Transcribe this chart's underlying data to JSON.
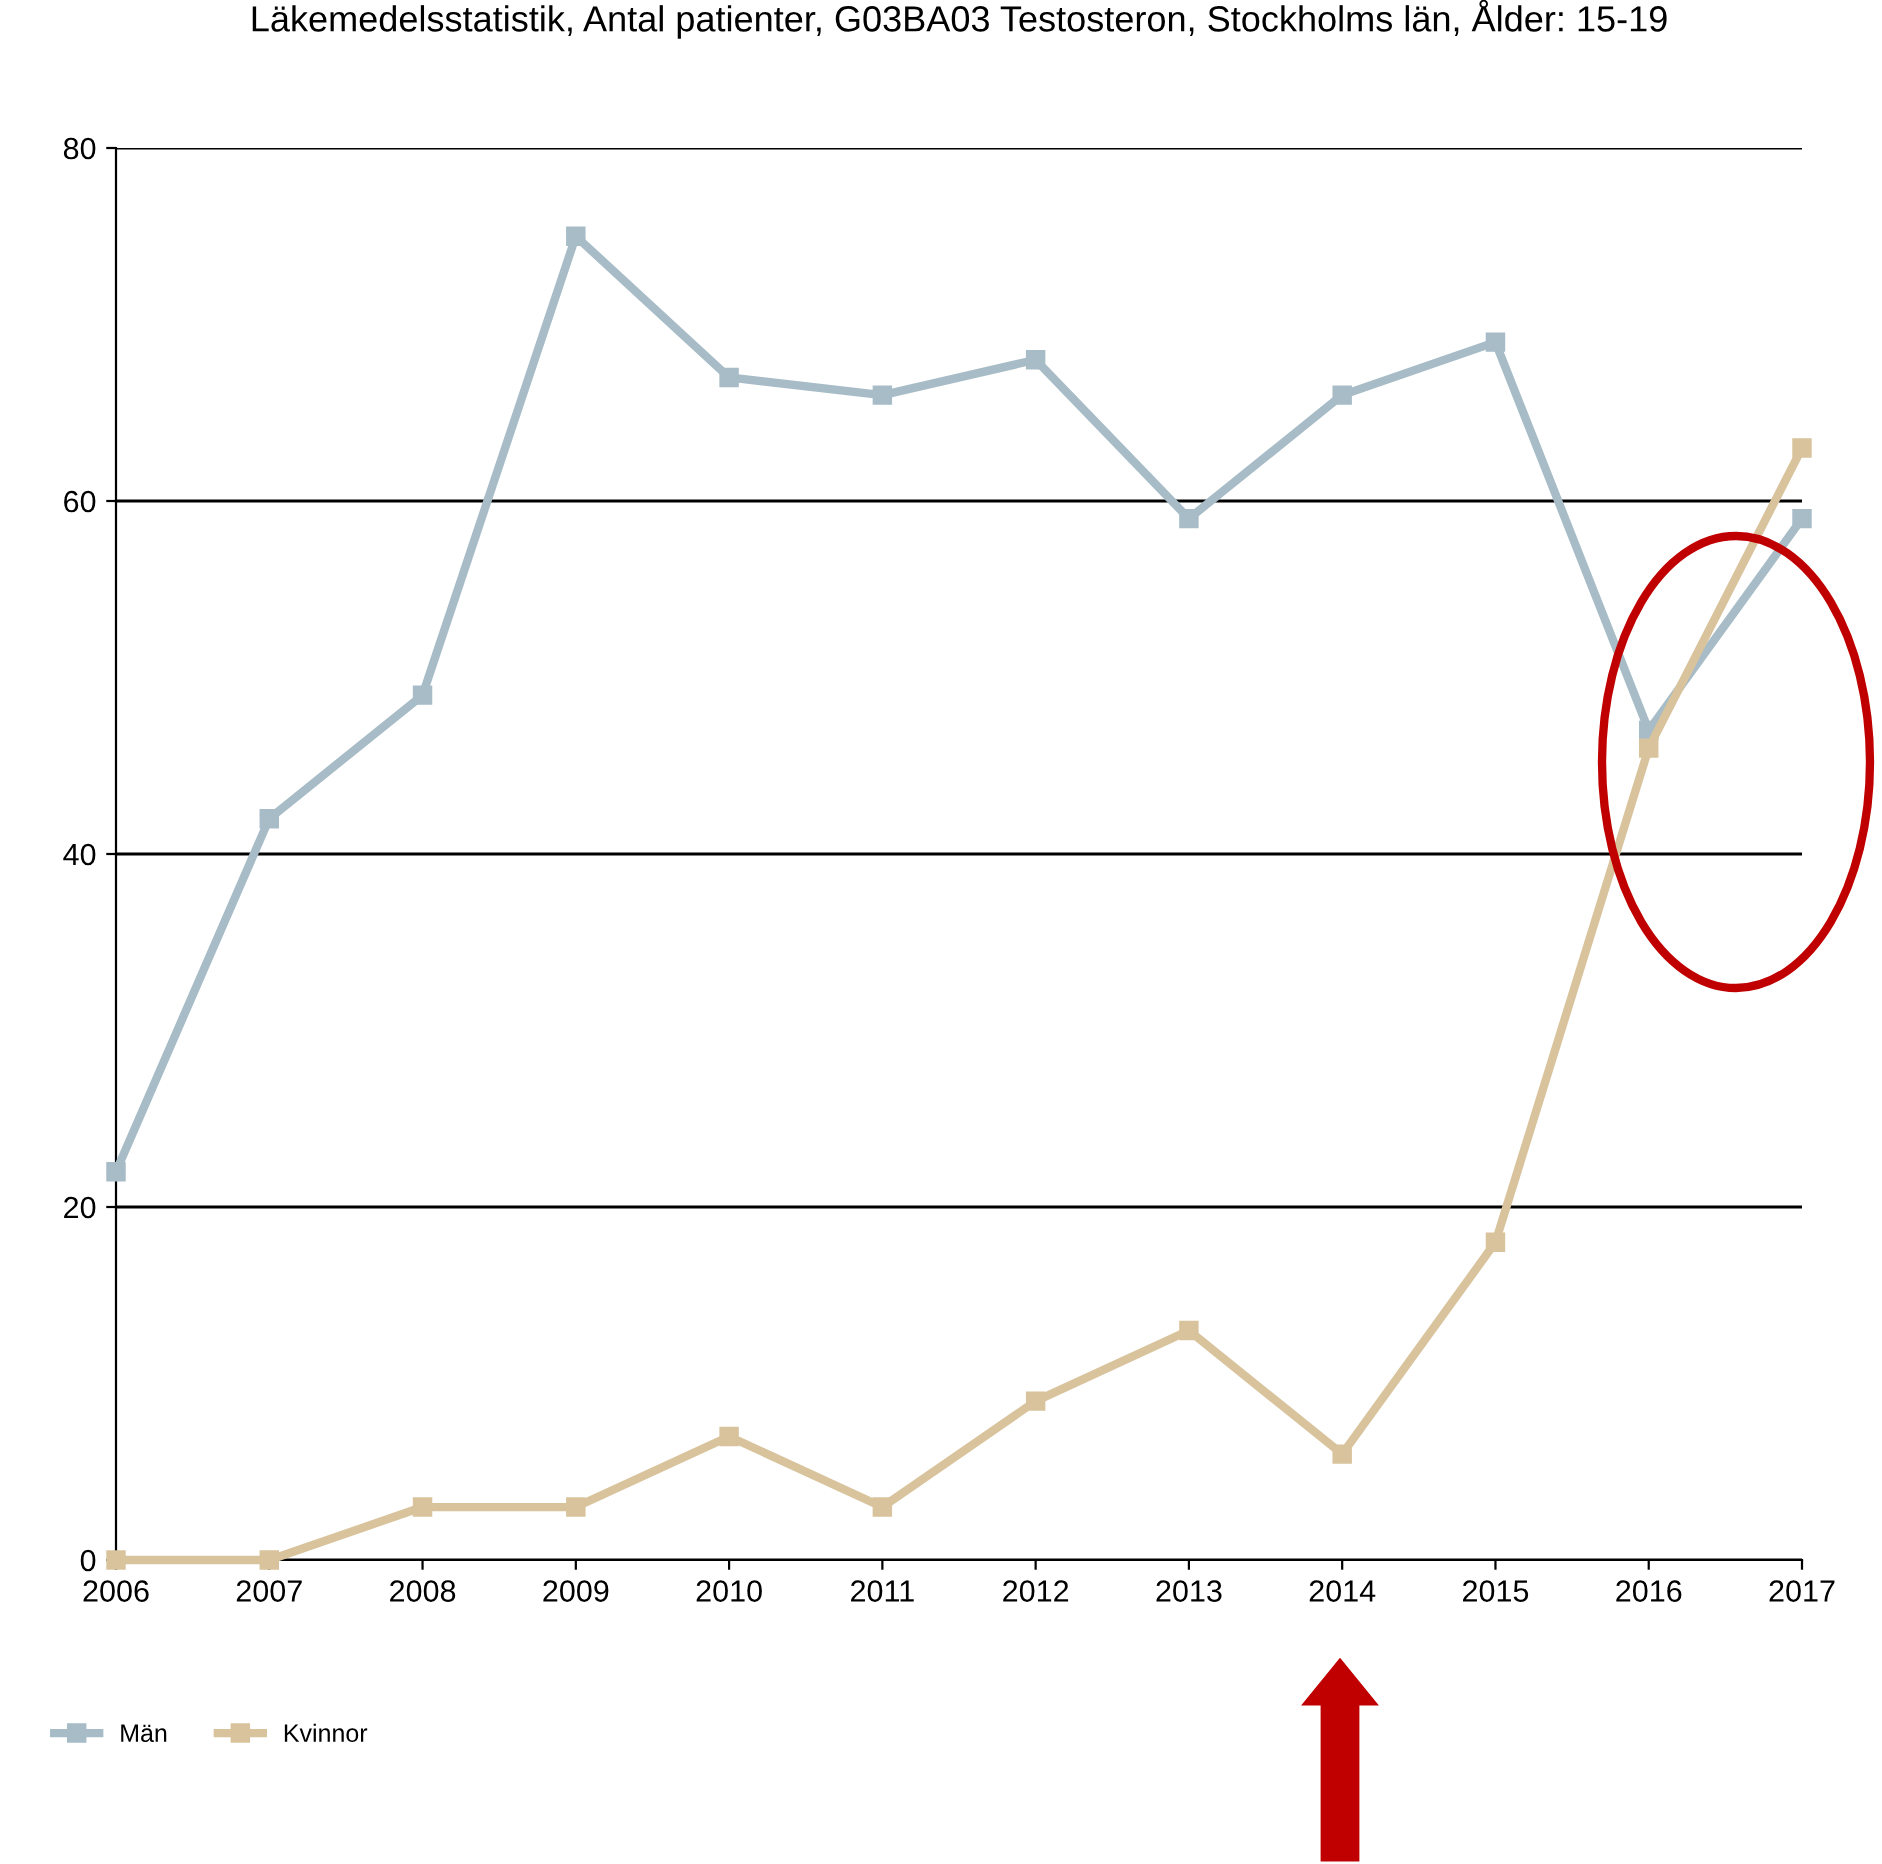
{
  "chart_data": {
    "type": "line",
    "title": "Läkemedelsstatistik, Antal patienter, G03BA03 Testosteron, Stockholms län, Ålder: 15-19",
    "x": [
      2006,
      2007,
      2008,
      2009,
      2010,
      2011,
      2012,
      2013,
      2014,
      2015,
      2016,
      2017
    ],
    "series": [
      {
        "name": "Män",
        "color": "#a7bcc7",
        "values": [
          22,
          42,
          49,
          75,
          67,
          66,
          68,
          59,
          66,
          69,
          47,
          59
        ]
      },
      {
        "name": "Kvinnor",
        "color": "#d8c39c",
        "values": [
          0,
          0,
          3,
          3,
          7,
          3,
          9,
          13,
          6,
          18,
          46,
          63
        ]
      }
    ],
    "xlim": [
      2006,
      2017
    ],
    "xticks": [
      2006,
      2007,
      2008,
      2009,
      2010,
      2011,
      2012,
      2013,
      2014,
      2015,
      2016,
      2017
    ],
    "ylim": [
      0,
      80
    ],
    "yticks": [
      0,
      20,
      40,
      60,
      80
    ],
    "grid": "y",
    "legend": "bottom left",
    "marker": "square",
    "line_style": "solid"
  }
}
